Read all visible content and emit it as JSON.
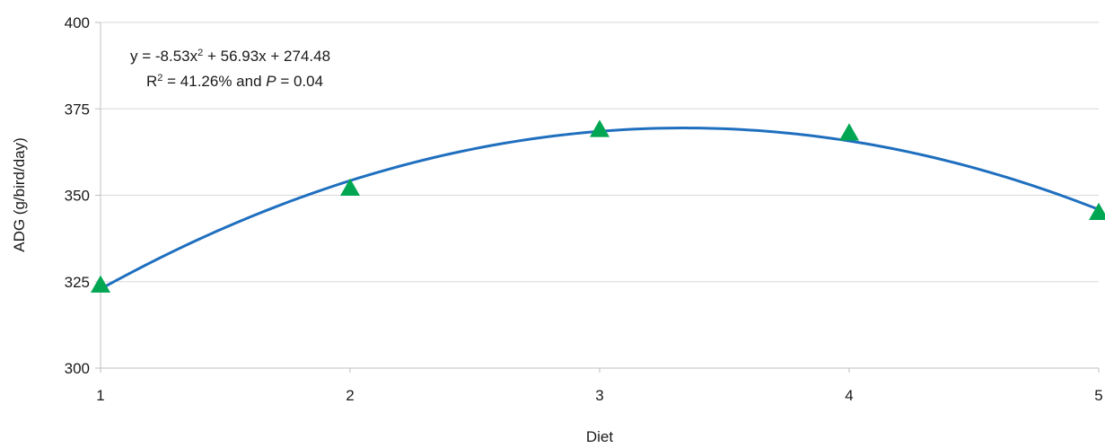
{
  "chart_data": {
    "type": "scatter",
    "title": "",
    "xlabel": "Diet",
    "ylabel": "ADG (g/bird/day)",
    "xlim": [
      1,
      5
    ],
    "ylim": [
      300,
      400
    ],
    "x_ticks": [
      "1",
      "2",
      "3",
      "4",
      "5"
    ],
    "y_ticks": [
      "300",
      "325",
      "350",
      "375",
      "400"
    ],
    "grid": "horizontal",
    "legend": "none",
    "series": [
      {
        "marker": "triangle",
        "color": "#00A651",
        "points": [
          {
            "x": 1,
            "y": 324
          },
          {
            "x": 2,
            "y": 352
          },
          {
            "x": 3,
            "y": 369
          },
          {
            "x": 4,
            "y": 368
          },
          {
            "x": 5,
            "y": 345
          }
        ]
      }
    ],
    "trendline": {
      "type": "polynomial",
      "order": 2,
      "coefficients": {
        "a": -8.53,
        "b": 56.93,
        "c": 274.48
      },
      "color": "#1F6FBF"
    },
    "annotation": {
      "line1_pre": "y = -8.53x",
      "line1_sup": "2",
      "line1_post": " + 56.93x + 274.48",
      "line2_r": "R",
      "line2_sup": "2",
      "line2_mid": " = 41.26% and ",
      "line2_p": "P",
      "line2_post": " = 0.04"
    },
    "colors": {
      "gridline": "#D9D9D9",
      "axis": "#BFBFBF"
    }
  }
}
